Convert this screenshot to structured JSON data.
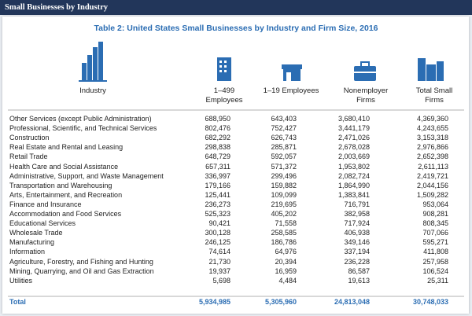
{
  "header": {
    "title": "Small Businesses by Industry"
  },
  "table": {
    "title": "Table 2: United States Small Businesses by Industry and Firm Size, 2016",
    "columns": [
      "Industry",
      "1–499 Employees",
      "1–19 Employees",
      "Nonemployer Firms",
      "Total Small Firms"
    ],
    "rows": [
      [
        "Other Services (except Public Administration)",
        "688,950",
        "643,403",
        "3,680,410",
        "4,369,360"
      ],
      [
        "Professional, Scientific, and Technical Services",
        "802,476",
        "752,427",
        "3,441,179",
        "4,243,655"
      ],
      [
        "Construction",
        "682,292",
        "626,743",
        "2,471,026",
        "3,153,318"
      ],
      [
        "Real Estate and Rental and Leasing",
        "298,838",
        "285,871",
        "2,678,028",
        "2,976,866"
      ],
      [
        "Retail Trade",
        "648,729",
        "592,057",
        "2,003,669",
        "2,652,398"
      ],
      [
        "Health Care and Social Assistance",
        "657,311",
        "571,372",
        "1,953,802",
        "2,611,113"
      ],
      [
        "Administrative, Support, and Waste Management",
        "336,997",
        "299,496",
        "2,082,724",
        "2,419,721"
      ],
      [
        "Transportation and Warehousing",
        "179,166",
        "159,882",
        "1,864,990",
        "2,044,156"
      ],
      [
        "Arts, Entertainment, and Recreation",
        "125,441",
        "109,099",
        "1,383,841",
        "1,509,282"
      ],
      [
        "Finance and Insurance",
        "236,273",
        "219,695",
        "716,791",
        "953,064"
      ],
      [
        "Accommodation and Food Services",
        "525,323",
        "405,202",
        "382,958",
        "908,281"
      ],
      [
        "Educational Services",
        "90,421",
        "71,558",
        "717,924",
        "808,345"
      ],
      [
        "Wholesale Trade",
        "300,128",
        "258,585",
        "406,938",
        "707,066"
      ],
      [
        "Manufacturing",
        "246,125",
        "186,786",
        "349,146",
        "595,271"
      ],
      [
        "Information",
        "74,614",
        "64,976",
        "337,194",
        "411,808"
      ],
      [
        "Agriculture, Forestry, and Fishing and Hunting",
        "21,730",
        "20,394",
        "236,228",
        "257,958"
      ],
      [
        "Mining, Quarrying, and Oil and Gas Extraction",
        "19,937",
        "16,959",
        "86,587",
        "106,524"
      ],
      [
        "Utilities",
        "5,698",
        "4,484",
        "19,613",
        "25,311"
      ]
    ],
    "total": [
      "Total",
      "5,934,985",
      "5,305,960",
      "24,813,048",
      "30,748,033"
    ]
  }
}
